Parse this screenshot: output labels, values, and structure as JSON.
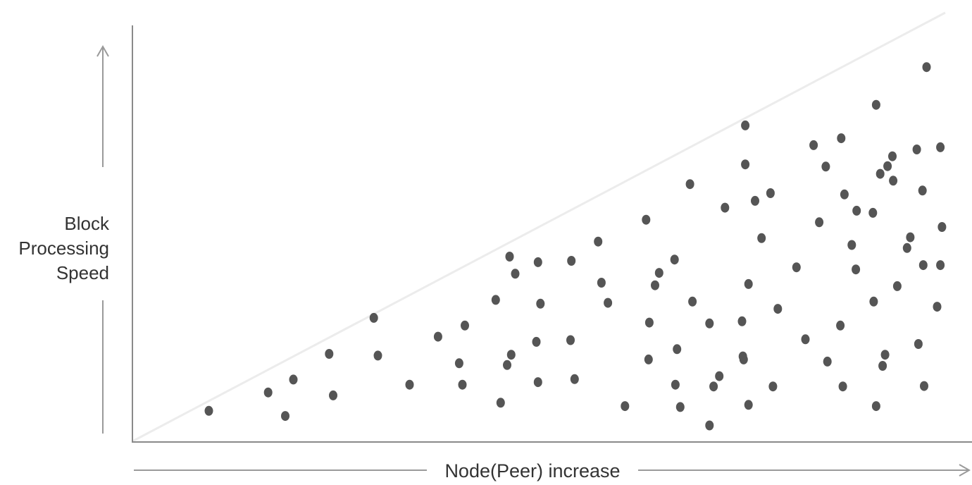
{
  "chart_data": {
    "type": "scatter",
    "title": "",
    "xlabel": "Node(Peer) increase",
    "ylabel_lines": [
      "Block",
      "Processing",
      "Speed"
    ],
    "colors": {
      "point": "#555555",
      "axis": "#888888",
      "frontier": "#ececec",
      "arrow": "#999999"
    },
    "grid": false,
    "legend": "none",
    "xlim": [
      0,
      100
    ],
    "ylim": [
      0,
      100
    ],
    "frontier_line": {
      "x": [
        0,
        100
      ],
      "y": [
        0,
        100
      ]
    },
    "points": [
      [
        9.4,
        7.1
      ],
      [
        16.7,
        11.4
      ],
      [
        18.8,
        5.9
      ],
      [
        19.8,
        14.4
      ],
      [
        24.2,
        20.4
      ],
      [
        24.7,
        10.7
      ],
      [
        29.7,
        28.8
      ],
      [
        30.2,
        20.0
      ],
      [
        34.1,
        13.2
      ],
      [
        37.6,
        24.4
      ],
      [
        40.2,
        18.2
      ],
      [
        40.9,
        27.0
      ],
      [
        40.6,
        13.2
      ],
      [
        44.7,
        33.0
      ],
      [
        45.3,
        9.0
      ],
      [
        46.1,
        17.8
      ],
      [
        46.6,
        20.2
      ],
      [
        46.4,
        43.1
      ],
      [
        47.1,
        39.1
      ],
      [
        49.9,
        41.8
      ],
      [
        50.2,
        32.1
      ],
      [
        49.7,
        23.2
      ],
      [
        49.9,
        13.8
      ],
      [
        54.0,
        42.1
      ],
      [
        53.9,
        23.6
      ],
      [
        54.4,
        14.5
      ],
      [
        57.7,
        37.0
      ],
      [
        58.5,
        32.3
      ],
      [
        57.3,
        46.6
      ],
      [
        60.6,
        8.2
      ],
      [
        63.2,
        51.7
      ],
      [
        63.6,
        27.7
      ],
      [
        63.5,
        19.1
      ],
      [
        64.3,
        36.4
      ],
      [
        64.8,
        39.3
      ],
      [
        66.7,
        42.4
      ],
      [
        67.0,
        21.5
      ],
      [
        66.8,
        13.2
      ],
      [
        67.4,
        8.0
      ],
      [
        68.6,
        60.0
      ],
      [
        68.9,
        32.6
      ],
      [
        71.0,
        27.5
      ],
      [
        71.0,
        3.7
      ],
      [
        71.5,
        12.8
      ],
      [
        72.2,
        15.2
      ],
      [
        72.9,
        54.5
      ],
      [
        75.0,
        28.0
      ],
      [
        75.1,
        19.8
      ],
      [
        75.2,
        19.1
      ],
      [
        75.4,
        64.6
      ],
      [
        75.4,
        73.7
      ],
      [
        75.8,
        36.7
      ],
      [
        75.8,
        8.5
      ],
      [
        76.6,
        56.1
      ],
      [
        77.4,
        47.4
      ],
      [
        78.5,
        57.9
      ],
      [
        78.8,
        12.8
      ],
      [
        79.4,
        30.9
      ],
      [
        81.7,
        40.6
      ],
      [
        82.8,
        23.8
      ],
      [
        83.8,
        69.1
      ],
      [
        84.5,
        51.1
      ],
      [
        85.3,
        64.1
      ],
      [
        85.5,
        18.6
      ],
      [
        87.2,
        70.7
      ],
      [
        87.1,
        27.0
      ],
      [
        87.4,
        12.8
      ],
      [
        87.6,
        57.6
      ],
      [
        88.5,
        45.8
      ],
      [
        89.0,
        40.1
      ],
      [
        89.1,
        53.8
      ],
      [
        91.1,
        53.3
      ],
      [
        91.5,
        78.5
      ],
      [
        91.2,
        32.6
      ],
      [
        91.5,
        8.2
      ],
      [
        92.0,
        62.4
      ],
      [
        92.3,
        17.6
      ],
      [
        92.6,
        20.2
      ],
      [
        92.9,
        64.2
      ],
      [
        93.5,
        66.5
      ],
      [
        93.6,
        60.8
      ],
      [
        94.1,
        36.2
      ],
      [
        95.3,
        45.1
      ],
      [
        95.7,
        47.6
      ],
      [
        96.5,
        68.1
      ],
      [
        96.7,
        22.7
      ],
      [
        97.2,
        58.5
      ],
      [
        97.3,
        41.1
      ],
      [
        97.7,
        87.3
      ],
      [
        97.4,
        12.9
      ],
      [
        99.4,
        68.6
      ],
      [
        99.6,
        50.0
      ],
      [
        99.4,
        41.1
      ],
      [
        99.0,
        31.4
      ]
    ]
  }
}
